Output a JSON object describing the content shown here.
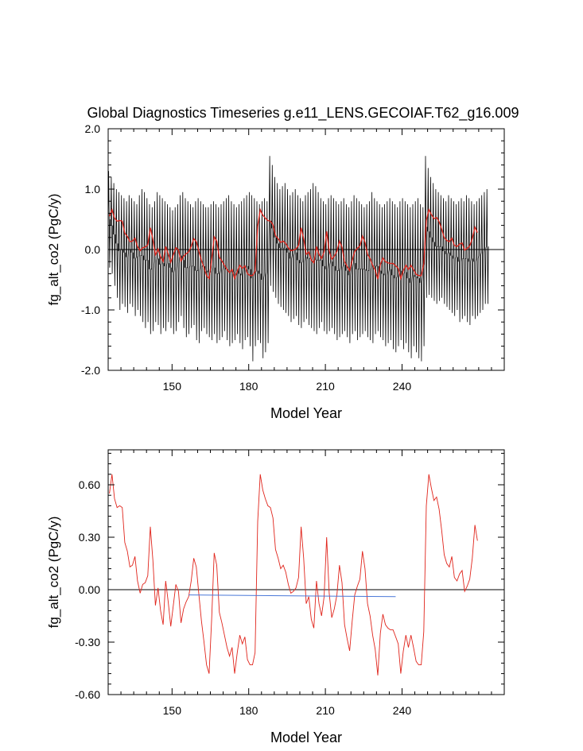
{
  "title": "Global Diagnostics Timeseries g.e11_LENS.GECOIAF.T62_g16.009",
  "colors": {
    "frame": "#000000",
    "monthly": "#000000",
    "annual": "#e0241b",
    "trend": "#4a78d8",
    "zero": "#000000"
  },
  "chart_data": [
    {
      "type": "line",
      "title": "Global Diagnostics Timeseries g.e11_LENS.GECOIAF.T62_g16.009",
      "xlabel": "Model Year",
      "ylabel": "fg_alt_co2 (PgC/y)",
      "xlim": [
        125,
        280
      ],
      "ylim": [
        -2.0,
        2.0
      ],
      "x_ticks": [
        150,
        180,
        210,
        240
      ],
      "x_tick_labels": [
        "150",
        "180",
        "210",
        "240"
      ],
      "y_ticks": [
        -2.0,
        -1.0,
        0.0,
        1.0,
        2.0
      ],
      "y_tick_labels": [
        "-2.0",
        "-1.0",
        "0.0",
        "1.0",
        "2.0"
      ],
      "reference_line": 0.0,
      "grid": false,
      "series": [
        {
          "role": "monthly",
          "color": "#000000",
          "x_start": 125.5,
          "x_step": 1,
          "seasonal_peak": [
            1.3,
            1.2,
            1.1,
            1.0,
            0.95,
            0.9,
            0.85,
            0.8,
            0.9,
            0.85,
            0.8,
            0.75,
            0.9,
            1.0,
            0.95,
            0.85,
            0.75,
            0.7,
            0.8,
            0.95,
            0.9,
            0.85,
            0.8,
            0.75,
            0.7,
            0.65,
            0.7,
            0.75,
            0.9,
            0.95,
            0.85,
            0.8,
            0.75,
            0.7,
            0.8,
            0.85,
            0.8,
            0.75,
            0.7,
            0.7,
            0.75,
            0.8,
            0.75,
            0.7,
            0.75,
            0.8,
            0.85,
            0.9,
            0.8,
            0.75,
            0.7,
            0.75,
            0.8,
            0.85,
            0.9,
            0.95,
            0.9,
            0.85,
            0.8,
            0.75,
            0.8,
            0.85,
            0.8,
            1.55,
            1.4,
            1.2,
            1.1,
            1.0,
            1.05,
            1.1,
            1.0,
            0.9,
            0.95,
            1.0,
            0.9,
            0.85,
            0.8,
            0.9,
            0.95,
            1.0,
            1.1,
            1.05,
            0.95,
            0.85,
            0.8,
            0.75,
            0.85,
            0.9,
            0.85,
            0.8,
            0.75,
            0.8,
            0.85,
            0.75,
            0.7,
            0.8,
            0.9,
            0.85,
            0.8,
            0.75,
            0.7,
            0.75,
            0.8,
            0.95,
            0.85,
            0.8,
            0.75,
            0.7,
            0.75,
            0.8,
            0.85,
            0.8,
            0.75,
            0.7,
            0.8,
            0.85,
            0.8,
            0.75,
            0.7,
            0.75,
            0.8,
            0.85,
            0.75,
            0.7,
            1.55,
            1.35,
            1.2,
            1.1,
            1.0,
            0.95,
            0.9,
            0.85,
            0.8,
            0.9,
            0.85,
            0.8,
            0.75,
            0.8,
            0.85,
            0.8,
            0.9,
            0.85,
            0.8,
            0.75,
            0.8,
            0.85,
            0.9,
            0.95,
            1.0
          ],
          "seasonal_trough": [
            -0.3,
            -0.4,
            -0.6,
            -0.8,
            -1.0,
            -0.9,
            -0.95,
            -1.05,
            -0.9,
            -0.95,
            -1.1,
            -1.0,
            -1.1,
            -1.2,
            -1.3,
            -1.2,
            -1.4,
            -1.35,
            -1.2,
            -1.25,
            -1.4,
            -1.3,
            -1.35,
            -1.2,
            -1.3,
            -1.4,
            -1.35,
            -1.2,
            -1.1,
            -1.3,
            -1.45,
            -1.4,
            -1.3,
            -1.25,
            -1.5,
            -1.55,
            -1.35,
            -1.3,
            -1.4,
            -1.45,
            -1.5,
            -1.4,
            -1.55,
            -1.5,
            -1.45,
            -1.35,
            -1.5,
            -1.6,
            -1.55,
            -1.5,
            -1.4,
            -1.55,
            -1.65,
            -1.5,
            -1.45,
            -1.6,
            -1.85,
            -1.6,
            -1.5,
            -1.55,
            -1.8,
            -1.7,
            -1.55,
            -0.6,
            -0.7,
            -0.8,
            -0.9,
            -0.95,
            -1.0,
            -1.05,
            -1.1,
            -1.2,
            -1.15,
            -1.1,
            -1.25,
            -1.3,
            -1.2,
            -1.15,
            -1.25,
            -1.3,
            -1.35,
            -1.4,
            -1.3,
            -1.2,
            -1.35,
            -1.4,
            -1.35,
            -1.3,
            -1.4,
            -1.5,
            -1.45,
            -1.4,
            -1.35,
            -1.45,
            -1.55,
            -1.4,
            -1.35,
            -1.5,
            -1.45,
            -1.4,
            -1.35,
            -1.45,
            -1.5,
            -1.55,
            -1.4,
            -1.35,
            -1.45,
            -1.5,
            -1.6,
            -1.55,
            -1.5,
            -1.65,
            -1.7,
            -1.6,
            -1.5,
            -1.65,
            -1.55,
            -1.7,
            -1.8,
            -1.6,
            -1.7,
            -1.8,
            -1.85,
            -1.6,
            -0.8,
            -0.75,
            -0.8,
            -0.85,
            -0.9,
            -0.85,
            -0.8,
            -0.9,
            -0.95,
            -1.0,
            -1.05,
            -1.1,
            -1.0,
            -1.2,
            -1.15,
            -1.1,
            -1.2,
            -1.25,
            -1.1,
            -1.15,
            -1.1,
            -1.05,
            -1.0,
            -0.9,
            -0.9
          ]
        },
        {
          "role": "annual",
          "color": "#e0241b",
          "x_start": 125.5,
          "x_step": 1,
          "values": [
            0.55,
            0.66,
            0.52,
            0.47,
            0.48,
            0.47,
            0.27,
            0.22,
            0.13,
            0.14,
            0.19,
            0.05,
            -0.02,
            0.03,
            0.04,
            0.08,
            0.36,
            0.17,
            -0.09,
            0.01,
            -0.12,
            -0.2,
            0.05,
            -0.07,
            -0.21,
            -0.09,
            0.03,
            -0.01,
            -0.19,
            -0.11,
            -0.07,
            -0.04,
            0.05,
            0.18,
            0.13,
            -0.03,
            -0.18,
            -0.3,
            -0.43,
            -0.48,
            -0.17,
            0.21,
            0.14,
            -0.13,
            -0.19,
            -0.26,
            -0.33,
            -0.38,
            -0.33,
            -0.48,
            -0.36,
            -0.26,
            -0.31,
            -0.27,
            -0.4,
            -0.43,
            -0.43,
            -0.36,
            0.39,
            0.66,
            0.57,
            0.52,
            0.48,
            0.47,
            0.41,
            0.23,
            0.18,
            0.12,
            0.14,
            0.1,
            0.03,
            -0.02,
            -0.01,
            0.01,
            0.07,
            0.36,
            0.18,
            -0.08,
            -0.04,
            -0.17,
            -0.22,
            0.05,
            -0.08,
            -0.15,
            -0.04,
            0.3,
            -0.02,
            -0.16,
            -0.11,
            -0.03,
            0.14,
            0.04,
            -0.2,
            -0.28,
            -0.35,
            -0.18,
            -0.03,
            0.02,
            0.06,
            0.22,
            0.12,
            -0.08,
            -0.15,
            -0.26,
            -0.34,
            -0.49,
            -0.25,
            -0.14,
            -0.2,
            -0.22,
            -0.23,
            -0.23,
            -0.27,
            -0.31,
            -0.48,
            -0.35,
            -0.26,
            -0.33,
            -0.26,
            -0.33,
            -0.41,
            -0.43,
            -0.43,
            -0.24,
            0.48,
            0.66,
            0.58,
            0.51,
            0.53,
            0.46,
            0.34,
            0.2,
            0.15,
            0.13,
            0.19,
            0.07,
            0.05,
            0.09,
            0.11,
            -0.01,
            0.02,
            0.06,
            0.18,
            0.37,
            0.28
          ]
        }
      ]
    },
    {
      "type": "line",
      "xlabel": "Model Year",
      "ylabel": "fg_alt_co2 (PgC/y)",
      "xlim": [
        125,
        280
      ],
      "ylim": [
        -0.6,
        0.8
      ],
      "x_ticks": [
        150,
        180,
        210,
        240
      ],
      "x_tick_labels": [
        "150",
        "180",
        "210",
        "240"
      ],
      "y_ticks": [
        -0.6,
        -0.3,
        0.0,
        0.3,
        0.6
      ],
      "y_tick_labels": [
        "-0.60",
        "-0.30",
        "0.00",
        "0.30",
        "0.60"
      ],
      "reference_line": 0.0,
      "grid": false,
      "series": [
        {
          "role": "annual",
          "color": "#e0241b",
          "x_start": 125.5,
          "x_step": 1,
          "values_ref": "same as upper panel annual series"
        },
        {
          "role": "trend",
          "color": "#4a78d8",
          "x": [
            156.5,
            237.5
          ],
          "y": [
            -0.03,
            -0.04
          ]
        }
      ]
    }
  ]
}
